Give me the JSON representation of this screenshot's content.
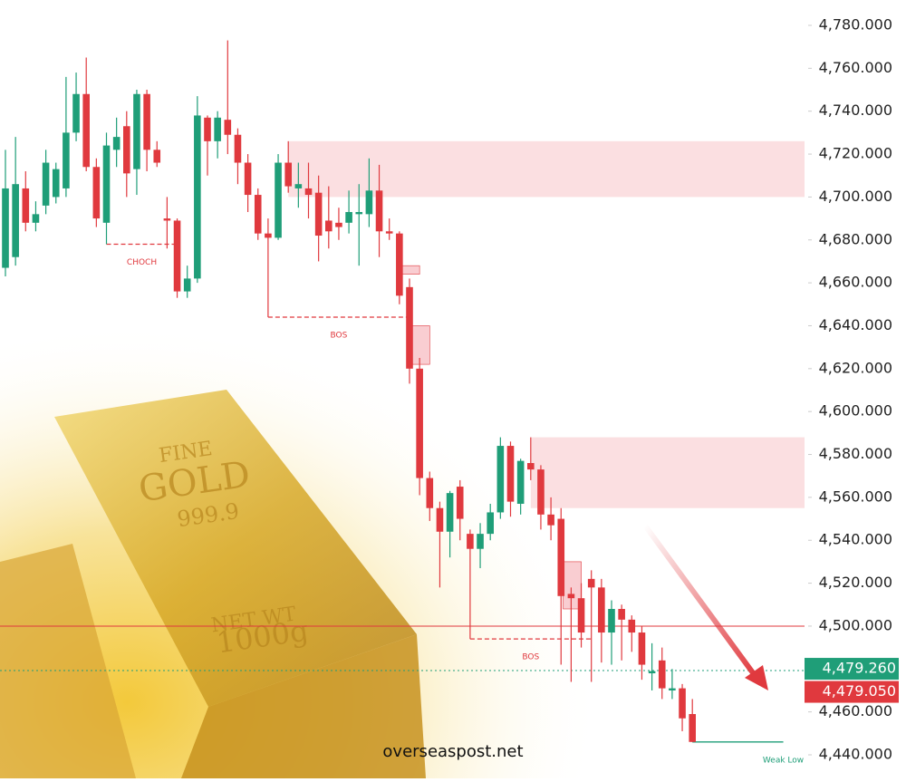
{
  "chart_data": {
    "type": "candlestick",
    "open": [
      4667,
      4672,
      4704,
      4688,
      4696,
      4700,
      4704,
      4730,
      4748,
      4714,
      4688,
      4722,
      4733,
      4713,
      4748,
      4722,
      4690,
      4689,
      4656,
      4662,
      4737,
      4726,
      4736,
      4729,
      4716,
      4701,
      4683,
      4681,
      4716,
      4704,
      4704,
      4702,
      4689,
      4688,
      4688,
      4692,
      4692,
      4703,
      4684,
      4683,
      4658,
      4620,
      4569,
      4555,
      4544,
      4565,
      4543,
      4536,
      4543,
      4553,
      4584,
      4557,
      4576,
      4573,
      4552,
      4550,
      4515,
      4513,
      4522,
      4518,
      4497,
      4508,
      4503,
      4497,
      4478,
      4484,
      4470,
      4471,
      4459
    ],
    "high": [
      4722,
      4728,
      4712,
      4698,
      4722,
      4716,
      4756,
      4758,
      4765,
      4718,
      4730,
      4737,
      4740,
      4750,
      4750,
      4726,
      4700,
      4690,
      4668,
      4747,
      4738,
      4740,
      4773,
      4732,
      4720,
      4704,
      4690,
      4720,
      4726,
      4716,
      4716,
      4710,
      4705,
      4695,
      4703,
      4706,
      4718,
      4715,
      4690,
      4684,
      4662,
      4625,
      4572,
      4558,
      4563,
      4568,
      4545,
      4548,
      4557,
      4588,
      4586,
      4578,
      4588,
      4575,
      4560,
      4555,
      4518,
      4520,
      4526,
      4522,
      4512,
      4510,
      4505,
      4500,
      4492,
      4490,
      4480,
      4473,
      4466
    ],
    "low": [
      4663,
      4668,
      4684,
      4684,
      4692,
      4697,
      4700,
      4726,
      4712,
      4686,
      4678,
      4714,
      4700,
      4701,
      4712,
      4714,
      4676,
      4653,
      4653,
      4660,
      4710,
      4718,
      4720,
      4706,
      4693,
      4680,
      4644,
      4680,
      4702,
      4695,
      4690,
      4670,
      4676,
      4680,
      4683,
      4668,
      4686,
      4672,
      4680,
      4650,
      4613,
      4561,
      4549,
      4518,
      4532,
      4540,
      4494,
      4527,
      4540,
      4550,
      4551,
      4552,
      4568,
      4545,
      4540,
      4482,
      4474,
      4490,
      4474,
      4483,
      4482,
      4484,
      4488,
      4475,
      4470,
      4466,
      4466,
      4451,
      4446
    ],
    "close": [
      4704,
      4706,
      4688,
      4692,
      4716,
      4713,
      4730,
      4748,
      4714,
      4690,
      4724,
      4728,
      4711,
      4748,
      4722,
      4716,
      4689,
      4656,
      4662,
      4738,
      4726,
      4737,
      4729,
      4716,
      4701,
      4683,
      4681,
      4716,
      4705,
      4706,
      4701,
      4682,
      4684,
      4686,
      4693,
      4693,
      4703,
      4684,
      4683,
      4654,
      4620,
      4569,
      4555,
      4544,
      4562,
      4550,
      4536,
      4543,
      4553,
      4584,
      4558,
      4577,
      4573,
      4552,
      4547,
      4514,
      4513,
      4497,
      4518,
      4497,
      4508,
      4503,
      4497,
      4482,
      4479,
      4471,
      4471,
      4457,
      4446
    ],
    "up_color": "#1f9e78",
    "down_color": "#e0393e",
    "ylim": [
      4440,
      4780
    ],
    "yticks": [
      {
        "value": 4440,
        "label": "4,440.000"
      },
      {
        "value": 4460,
        "label": "4,460.000"
      },
      {
        "value": 4480,
        "label": "4,480.000"
      },
      {
        "value": 4500,
        "label": "4,500.000"
      },
      {
        "value": 4520,
        "label": "4,520.000"
      },
      {
        "value": 4540,
        "label": "4,540.000"
      },
      {
        "value": 4560,
        "label": "4,560.000"
      },
      {
        "value": 4580,
        "label": "4,580.000"
      },
      {
        "value": 4600,
        "label": "4,600.000"
      },
      {
        "value": 4620,
        "label": "4,620.000"
      },
      {
        "value": 4640,
        "label": "4,640.000"
      },
      {
        "value": 4660,
        "label": "4,660.000"
      },
      {
        "value": 4680,
        "label": "4,680.000"
      },
      {
        "value": 4700,
        "label": "4,700.000"
      },
      {
        "value": 4720,
        "label": "4,720.000"
      },
      {
        "value": 4740,
        "label": "4,740.000"
      },
      {
        "value": 4760,
        "label": "4,760.000"
      },
      {
        "value": 4780,
        "label": "4,780.000"
      }
    ],
    "zones": [
      {
        "top": 4726,
        "bottom": 4700,
        "start": 28
      },
      {
        "top": 4588,
        "bottom": 4555,
        "start": 52
      },
      {
        "top": 4668,
        "bottom": 4664,
        "start": 39.3,
        "end": 41
      },
      {
        "top": 4640,
        "bottom": 4622,
        "start": 40.2,
        "end": 42
      },
      {
        "top": 4530,
        "bottom": 4508,
        "start": 55.2,
        "end": 57
      }
    ],
    "annotations": [
      {
        "text": "CHOCH",
        "value": 4678,
        "start": 10,
        "end": 17,
        "color": "#e0393e"
      },
      {
        "text": "BOS",
        "value": 4644,
        "start": 26,
        "end": 40,
        "color": "#e0393e"
      },
      {
        "text": "BOS",
        "value": 4494,
        "start": 46,
        "end": 58,
        "color": "#e0393e"
      },
      {
        "text": "Weak Low",
        "value": 4446,
        "start": 68,
        "end": 77,
        "color": "#1f9e78"
      }
    ],
    "reference_line": 4500,
    "badges": [
      {
        "value": 4479.26,
        "label": "4,479.260",
        "color": "#1f9e78"
      },
      {
        "value": 4479.05,
        "label": "4,479.050",
        "color": "#e0393e"
      }
    ],
    "watermark": "overseaspost.net",
    "background_text": [
      "FINE",
      "GOLD",
      "999.9",
      "NET WT",
      "1000g"
    ]
  }
}
